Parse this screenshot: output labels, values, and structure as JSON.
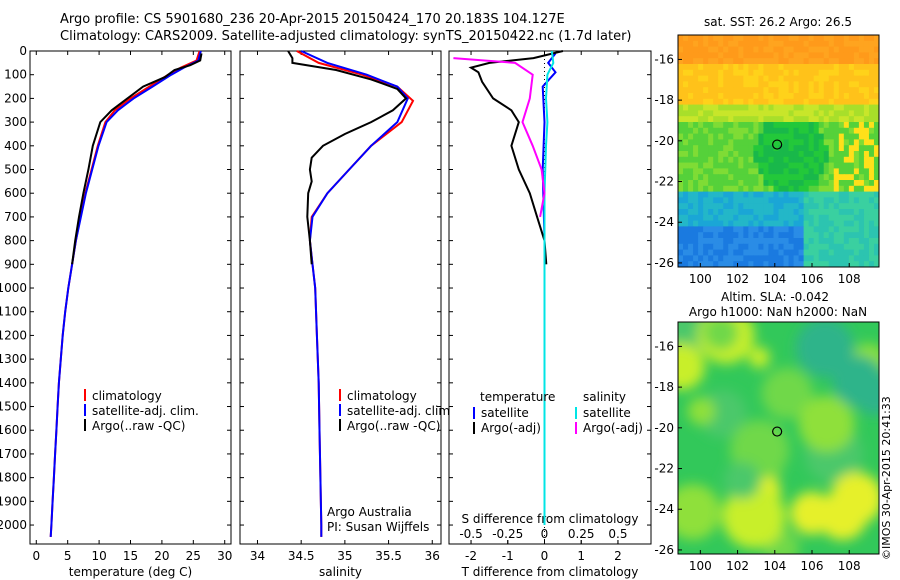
{
  "title": {
    "line1": "Argo profile: CS 5901680_236 20-Apr-2015 20150424_170 20.183S 104.127E",
    "line2": "Climatology: CARS2009. Satellite-adjusted climatology: synTS_20150422.nc (1.7d later)"
  },
  "stamp": "©IMOS 30-Apr-2015 20:41:33",
  "colors": {
    "climatology": "#ff0000",
    "satellite": "#0000ff",
    "argo": "#000000",
    "satellite_salinity": "#00e5e5",
    "argo_salinity": "#ff00ff"
  },
  "chart_data": [
    {
      "type": "line",
      "id": "temperature",
      "xlabel": "temperature (deg C)",
      "ylabel": "",
      "xlim": [
        -1,
        31
      ],
      "ylim": [
        2080,
        0
      ],
      "y_reversed": true,
      "xticks": [
        0,
        5,
        10,
        15,
        20,
        25,
        30
      ],
      "yticks": [
        0,
        100,
        200,
        300,
        400,
        500,
        600,
        700,
        800,
        900,
        1000,
        1100,
        1200,
        1300,
        1400,
        1500,
        1600,
        1700,
        1800,
        1900,
        2000
      ],
      "legend_entries": [
        "climatology",
        "satellite-adj. clim.",
        "Argo(..raw -QC)"
      ],
      "series": [
        {
          "name": "climatology",
          "color": "#ff0000",
          "points": [
            [
              26.0,
              0
            ],
            [
              25.5,
              40
            ],
            [
              23.0,
              70
            ],
            [
              21.0,
              100
            ],
            [
              18.0,
              150
            ],
            [
              15.0,
              200
            ],
            [
              12.5,
              250
            ],
            [
              11.0,
              300
            ],
            [
              9.8,
              400
            ],
            [
              8.8,
              500
            ],
            [
              7.8,
              600
            ],
            [
              7.0,
              700
            ],
            [
              6.3,
              800
            ],
            [
              5.7,
              900
            ],
            [
              5.1,
              1000
            ],
            [
              4.6,
              1100
            ],
            [
              4.2,
              1200
            ],
            [
              3.9,
              1300
            ],
            [
              3.6,
              1400
            ],
            [
              3.4,
              1500
            ],
            [
              3.2,
              1600
            ],
            [
              3.0,
              1700
            ],
            [
              2.8,
              1800
            ],
            [
              2.6,
              1900
            ],
            [
              2.4,
              2000
            ],
            [
              2.3,
              2050
            ]
          ]
        },
        {
          "name": "satellite-adj. clim.",
          "color": "#0000ff",
          "points": [
            [
              26.2,
              0
            ],
            [
              25.8,
              40
            ],
            [
              23.5,
              70
            ],
            [
              21.5,
              100
            ],
            [
              18.5,
              150
            ],
            [
              15.5,
              200
            ],
            [
              13.0,
              250
            ],
            [
              11.2,
              300
            ],
            [
              9.9,
              400
            ],
            [
              8.9,
              500
            ],
            [
              7.9,
              600
            ],
            [
              7.1,
              700
            ],
            [
              6.3,
              800
            ],
            [
              5.7,
              900
            ],
            [
              5.1,
              1000
            ],
            [
              4.6,
              1100
            ],
            [
              4.2,
              1200
            ],
            [
              3.9,
              1300
            ],
            [
              3.6,
              1400
            ],
            [
              3.4,
              1500
            ],
            [
              3.2,
              1600
            ],
            [
              3.0,
              1700
            ],
            [
              2.8,
              1800
            ],
            [
              2.6,
              1900
            ],
            [
              2.4,
              2000
            ],
            [
              2.3,
              2050
            ]
          ]
        },
        {
          "name": "Argo(..raw -QC)",
          "color": "#000000",
          "points": [
            [
              26.3,
              10
            ],
            [
              26.1,
              40
            ],
            [
              24.5,
              60
            ],
            [
              22.0,
              80
            ],
            [
              20.5,
              110
            ],
            [
              17.0,
              150
            ],
            [
              14.5,
              200
            ],
            [
              12.0,
              250
            ],
            [
              10.2,
              300
            ],
            [
              9.0,
              400
            ],
            [
              8.3,
              500
            ],
            [
              7.5,
              600
            ],
            [
              6.8,
              700
            ],
            [
              6.2,
              800
            ],
            [
              5.7,
              900
            ]
          ]
        }
      ]
    },
    {
      "type": "line",
      "id": "salinity",
      "xlabel": "salinity",
      "ylabel": "",
      "xlim": [
        33.8,
        36.1
      ],
      "ylim": [
        2080,
        0
      ],
      "y_reversed": true,
      "xticks": [
        34,
        34.5,
        35,
        35.5,
        36
      ],
      "legend_entries": [
        "climatology",
        "satellite-adj. clim.",
        "Argo(..raw -QC)"
      ],
      "annotations": [
        "Argo Australia",
        "PI: Susan Wijffels"
      ],
      "series": [
        {
          "name": "climatology",
          "color": "#ff0000",
          "points": [
            [
              34.45,
              0
            ],
            [
              34.7,
              50
            ],
            [
              35.2,
              100
            ],
            [
              35.6,
              150
            ],
            [
              35.78,
              210
            ],
            [
              35.65,
              300
            ],
            [
              35.3,
              400
            ],
            [
              35.05,
              500
            ],
            [
              34.8,
              600
            ],
            [
              34.62,
              700
            ],
            [
              34.6,
              800
            ],
            [
              34.63,
              900
            ],
            [
              34.66,
              1000
            ],
            [
              34.68,
              1200
            ],
            [
              34.7,
              1400
            ],
            [
              34.71,
              1600
            ],
            [
              34.72,
              1800
            ],
            [
              34.73,
              2000
            ],
            [
              34.73,
              2050
            ]
          ]
        },
        {
          "name": "satellite-adj. clim.",
          "color": "#0000ff",
          "points": [
            [
              34.5,
              0
            ],
            [
              34.8,
              50
            ],
            [
              35.25,
              100
            ],
            [
              35.6,
              150
            ],
            [
              35.72,
              200
            ],
            [
              35.6,
              300
            ],
            [
              35.3,
              400
            ],
            [
              35.05,
              500
            ],
            [
              34.8,
              600
            ],
            [
              34.63,
              700
            ],
            [
              34.6,
              800
            ],
            [
              34.63,
              900
            ],
            [
              34.66,
              1000
            ],
            [
              34.68,
              1200
            ],
            [
              34.7,
              1400
            ],
            [
              34.71,
              1600
            ],
            [
              34.72,
              1800
            ],
            [
              34.73,
              2000
            ],
            [
              34.73,
              2050
            ]
          ]
        },
        {
          "name": "Argo(..raw -QC)",
          "color": "#000000",
          "points": [
            [
              34.35,
              0
            ],
            [
              34.4,
              30
            ],
            [
              34.4,
              50
            ],
            [
              34.9,
              80
            ],
            [
              35.3,
              120
            ],
            [
              35.6,
              160
            ],
            [
              35.7,
              200
            ],
            [
              35.55,
              250
            ],
            [
              35.3,
              300
            ],
            [
              35.0,
              350
            ],
            [
              34.75,
              400
            ],
            [
              34.62,
              450
            ],
            [
              34.6,
              500
            ],
            [
              34.62,
              550
            ],
            [
              34.58,
              600
            ],
            [
              34.57,
              700
            ],
            [
              34.6,
              800
            ],
            [
              34.62,
              900
            ]
          ]
        }
      ]
    },
    {
      "type": "line",
      "id": "difference",
      "xlabel": "T difference from climatology",
      "x2label": "S difference from climatology",
      "xlim": [
        -2.6,
        2.9
      ],
      "x2lim": [
        -0.65,
        0.725
      ],
      "ylim": [
        2080,
        0
      ],
      "y_reversed": true,
      "xticks": [
        -2,
        -1,
        0,
        1,
        2
      ],
      "x2ticks": [
        -0.5,
        -0.25,
        0,
        0.25,
        0.5
      ],
      "x2ticklabels": [
        "-0.5",
        "-0.25",
        "0",
        "0.25",
        "0.5"
      ],
      "legend_headers": [
        "temperature",
        "salinity"
      ],
      "legend_entries": [
        "satellite",
        "Argo(-adj)",
        "satellite",
        "Argo(-adj)"
      ],
      "series": [
        {
          "name": "satellite",
          "group": "temperature",
          "color": "#0000ff",
          "points": [
            [
              0.3,
              10
            ],
            [
              0.1,
              50
            ],
            [
              0.3,
              90
            ],
            [
              -0.05,
              150
            ],
            [
              0.0,
              300
            ],
            [
              -0.05,
              500
            ],
            [
              0.0,
              800
            ],
            [
              0.0,
              1200
            ],
            [
              0.0,
              1600
            ],
            [
              0.0,
              2000
            ]
          ]
        },
        {
          "name": "Argo(-adj)",
          "group": "temperature",
          "color": "#000000",
          "points": [
            [
              0.5,
              0
            ],
            [
              -0.3,
              30
            ],
            [
              -1.5,
              50
            ],
            [
              -2.0,
              70
            ],
            [
              -1.8,
              90
            ],
            [
              -1.7,
              130
            ],
            [
              -1.4,
              200
            ],
            [
              -0.9,
              250
            ],
            [
              -0.7,
              300
            ],
            [
              -0.9,
              400
            ],
            [
              -0.7,
              500
            ],
            [
              -0.4,
              600
            ],
            [
              -0.2,
              700
            ],
            [
              0.0,
              800
            ],
            [
              0.05,
              900
            ]
          ]
        },
        {
          "name": "satellite",
          "group": "salinity",
          "color": "#00e5e5",
          "points": [
            [
              0.05,
              0
            ],
            [
              0.06,
              50
            ],
            [
              0.02,
              100
            ],
            [
              0.01,
              200
            ],
            [
              0.02,
              300
            ],
            [
              0.01,
              400
            ],
            [
              0.0,
              600
            ],
            [
              0.0,
              800
            ],
            [
              0.0,
              1200
            ],
            [
              0.0,
              1600
            ],
            [
              0.0,
              2000
            ]
          ]
        },
        {
          "name": "Argo(-adj)",
          "group": "salinity",
          "color": "#ff00ff",
          "points": [
            [
              -0.62,
              30
            ],
            [
              -0.2,
              50
            ],
            [
              -0.08,
              100
            ],
            [
              -0.1,
              200
            ],
            [
              -0.15,
              300
            ],
            [
              -0.08,
              400
            ],
            [
              -0.02,
              500
            ],
            [
              0.0,
              600
            ],
            [
              -0.03,
              700
            ]
          ]
        }
      ]
    },
    {
      "type": "heatmap",
      "id": "sst_map",
      "title": "sat. SST: 26.2  Argo: 26.5",
      "xlim": [
        98.8,
        109.6
      ],
      "ylim": [
        -26.2,
        -14.8
      ],
      "xticks": [
        100,
        102,
        104,
        106,
        108
      ],
      "yticks": [
        -16,
        -18,
        -20,
        -22,
        -24,
        -26
      ],
      "marker": {
        "lon": 104.127,
        "lat": -20.183
      },
      "colormap": "jet",
      "description_values": {
        "sst_range_warm_north": "orange",
        "sst_cool_south": "blue"
      }
    },
    {
      "type": "heatmap",
      "id": "sla_map",
      "title_line1": "Altim. SLA: -0.042",
      "title_line2": "Argo h1000: NaN h2000: NaN",
      "xlim": [
        98.8,
        109.6
      ],
      "ylim": [
        -26.2,
        -14.8
      ],
      "xticks": [
        100,
        102,
        104,
        106,
        108
      ],
      "yticks": [
        -16,
        -18,
        -20,
        -22,
        -24,
        -26
      ],
      "marker": {
        "lon": 104.127,
        "lat": -20.183
      },
      "colormap": "jet"
    }
  ]
}
